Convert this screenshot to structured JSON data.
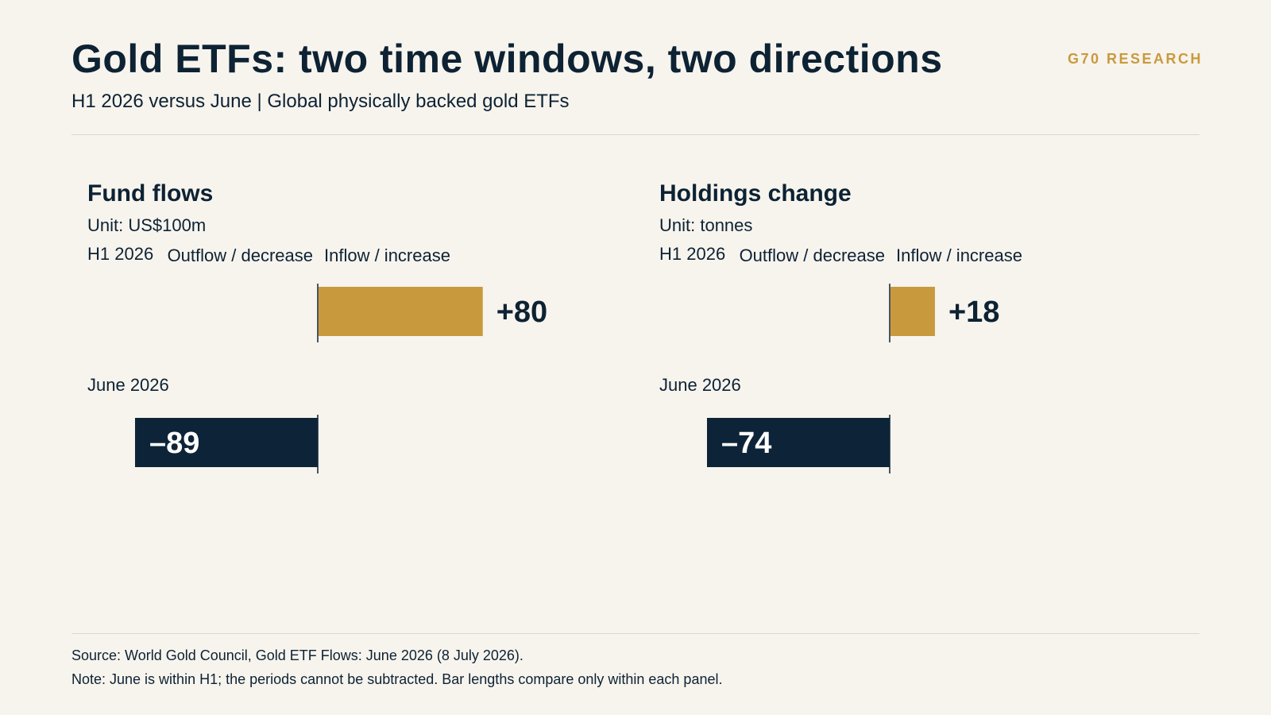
{
  "header": {
    "title": "Gold ETFs: two time windows, two directions",
    "subtitle": "H1 2026 versus June | Global physically backed gold ETFs",
    "brand": "G70 RESEARCH"
  },
  "colors": {
    "positive": "#c99a3d",
    "negative": "#0d2438",
    "text": "#0d2233",
    "brand": "#c99a3d"
  },
  "chart_data": [
    {
      "type": "bar",
      "orientation": "horizontal",
      "title": "Fund flows",
      "unit": "Unit: US$100m",
      "direction_labels": {
        "negative": "Outflow / decrease",
        "positive": "Inflow / increase"
      },
      "categories": [
        "H1 2026",
        "June 2026"
      ],
      "values": [
        80,
        -89
      ],
      "value_labels": [
        "+80",
        "–89"
      ]
    },
    {
      "type": "bar",
      "orientation": "horizontal",
      "title": "Holdings change",
      "unit": "Unit: tonnes",
      "direction_labels": {
        "negative": "Outflow / decrease",
        "positive": "Inflow / increase"
      },
      "categories": [
        "H1 2026",
        "June 2026"
      ],
      "values": [
        18,
        -74
      ],
      "value_labels": [
        "+18",
        "–74"
      ]
    }
  ],
  "footer": {
    "source": "Source: World Gold Council, Gold ETF Flows: June 2026 (8 July 2026).",
    "note": "Note: June is within H1; the periods cannot be subtracted. Bar lengths compare only within each panel."
  }
}
